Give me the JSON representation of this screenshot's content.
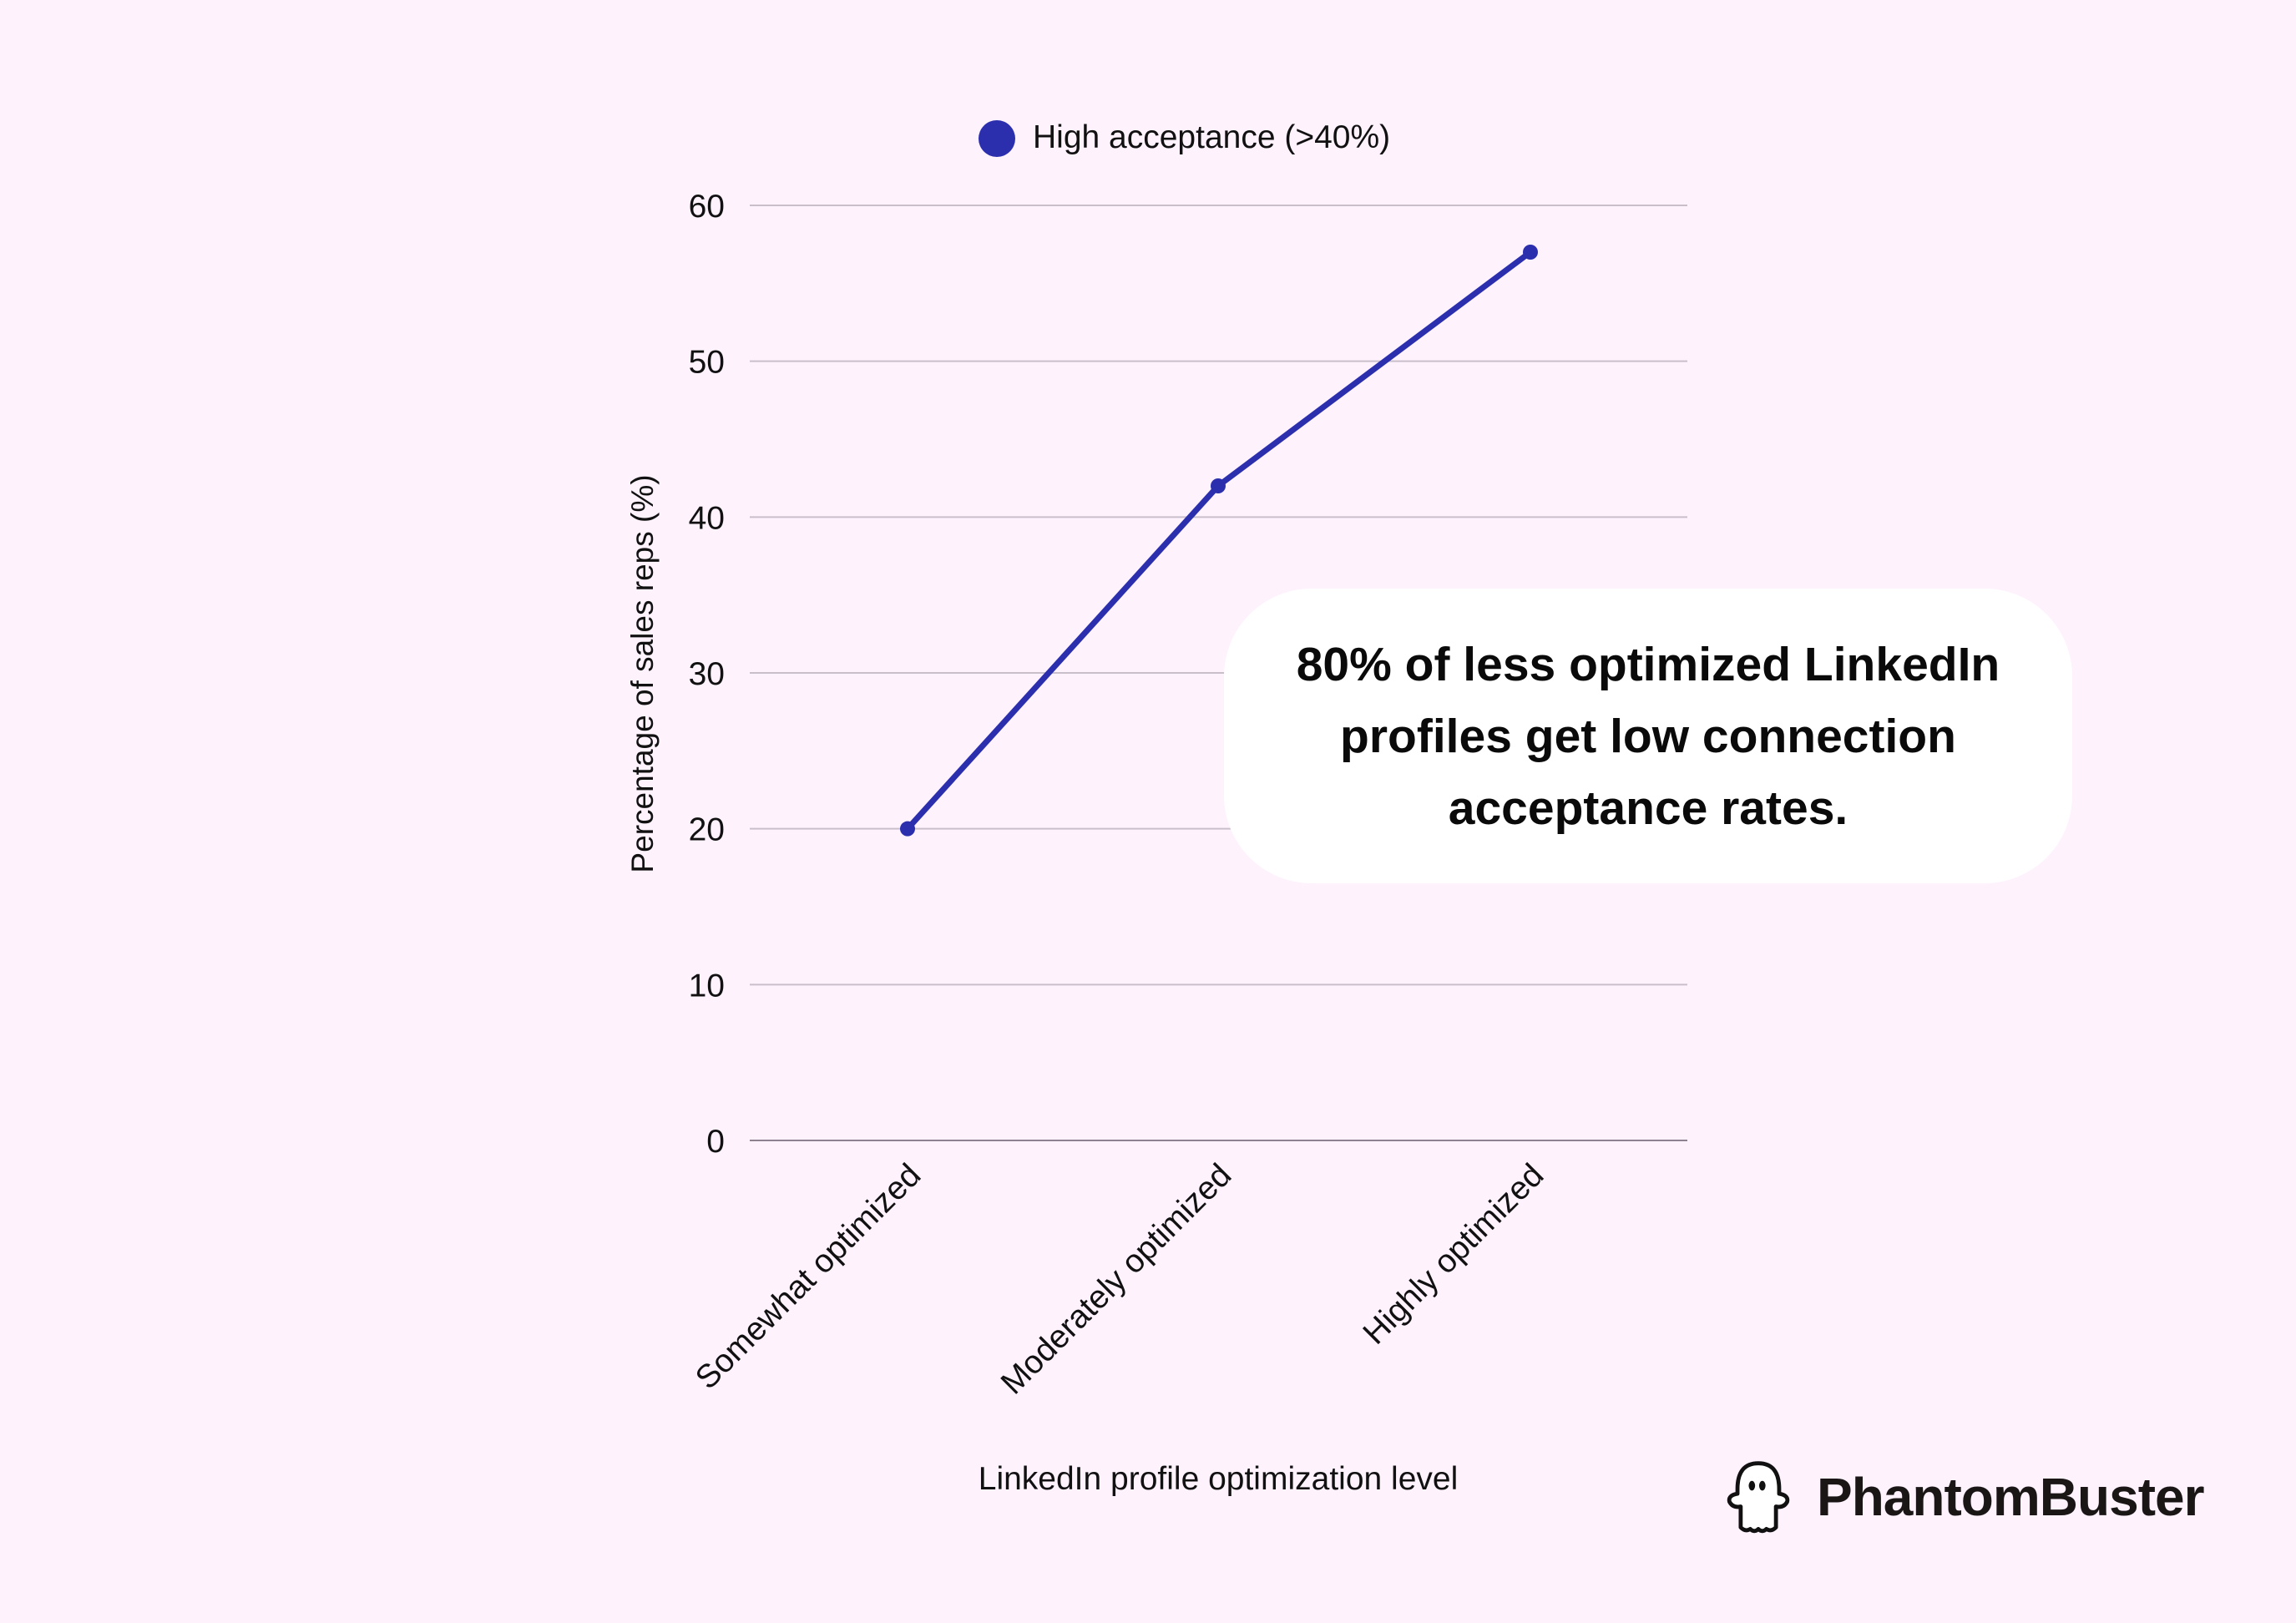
{
  "chart_data": {
    "type": "line",
    "categories": [
      "Somewhat optimized",
      "Moderately optimized",
      "Highly optimized"
    ],
    "series": [
      {
        "name": "High acceptance (>40%)",
        "values": [
          20,
          42,
          57
        ],
        "color": "#2b2fae"
      }
    ],
    "xlabel": "LinkedIn profile optimization level",
    "ylabel": "Percentage of sales reps (%)",
    "ylim": [
      0,
      60
    ],
    "yticks": [
      0,
      10,
      20,
      30,
      40,
      50,
      60
    ],
    "grid": true,
    "legend_position": "top"
  },
  "callout": {
    "text": "80% of less optimized LinkedIn profiles get low connection acceptance rates."
  },
  "brand": {
    "name": "PhantomBuster",
    "icon": "ghost-icon"
  },
  "colors": {
    "background": "#fef2fd",
    "line": "#2b2fae",
    "grid": "#c9bfca"
  }
}
